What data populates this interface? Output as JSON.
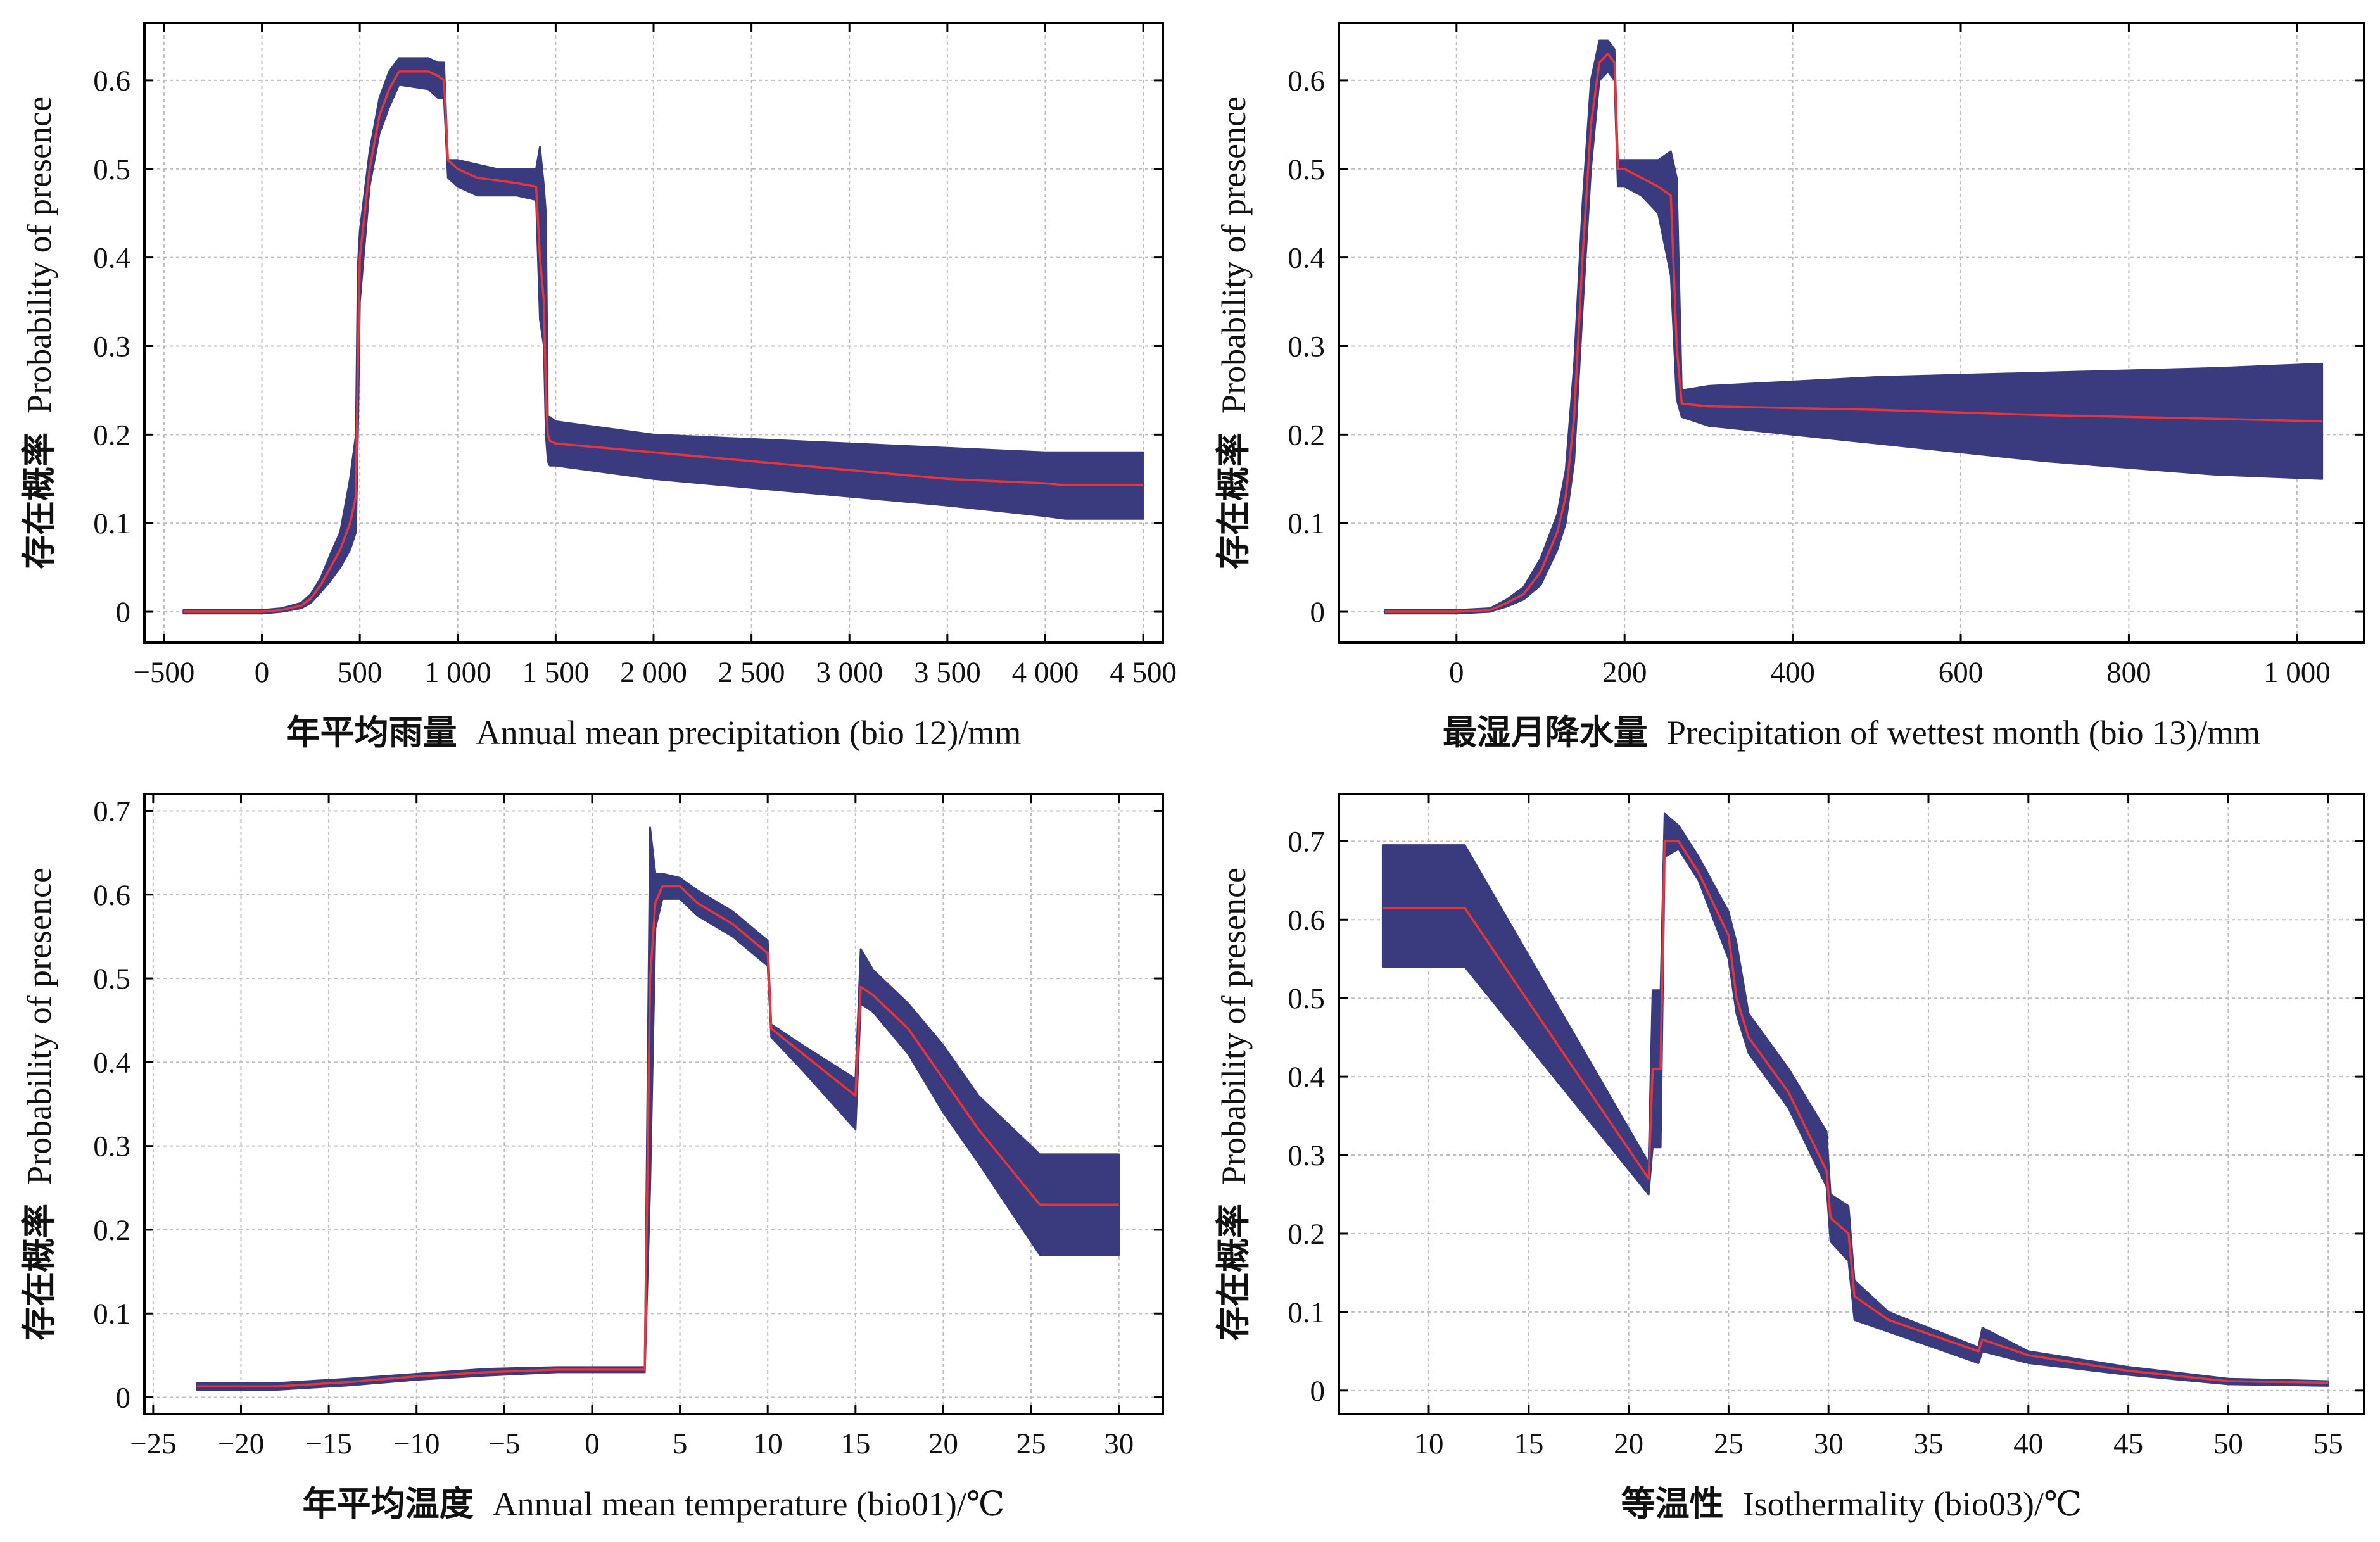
{
  "colors": {
    "band": "#3a3a7e",
    "mean_line": "#e8353a",
    "grid": "#bdbdbd",
    "axes": "#000000"
  },
  "chart_data": [
    {
      "type": "area",
      "xlabel_cn": "年平均雨量",
      "xlabel_en": "Annual mean precipitation (bio 12)/mm",
      "ylabel_cn": "存在概率",
      "ylabel_en": "Probability of presence",
      "xlim": [
        -600,
        4600
      ],
      "ylim": [
        -0.035,
        0.665
      ],
      "xticks": [
        -500,
        0,
        500,
        1000,
        1500,
        2000,
        2500,
        3000,
        3500,
        4000,
        4500
      ],
      "xtick_labels": [
        "−500",
        "0",
        "500",
        "1 000",
        "1 500",
        "2 000",
        "2 500",
        "3 000",
        "3 500",
        "4 000",
        "4 500"
      ],
      "yticks": [
        0,
        0.1,
        0.2,
        0.3,
        0.4,
        0.5,
        0.6
      ],
      "ytick_labels": [
        "0",
        "0.1",
        "0.2",
        "0.3",
        "0.4",
        "0.5",
        "0.6"
      ],
      "grid": true,
      "series": [
        {
          "role": "mean",
          "x": [
            -400,
            0,
            100,
            200,
            250,
            300,
            350,
            400,
            450,
            480,
            490,
            500,
            550,
            600,
            650,
            700,
            850,
            900,
            930,
            950,
            1000,
            1100,
            1200,
            1300,
            1400,
            1420,
            1440,
            1450,
            1460,
            1470,
            1500,
            2000,
            2500,
            3000,
            3500,
            4000,
            4100,
            4500
          ],
          "y": [
            0,
            0,
            0.002,
            0.007,
            0.015,
            0.03,
            0.05,
            0.07,
            0.1,
            0.13,
            0.28,
            0.4,
            0.5,
            0.56,
            0.59,
            0.61,
            0.61,
            0.605,
            0.6,
            0.51,
            0.5,
            0.49,
            0.487,
            0.484,
            0.48,
            0.4,
            0.35,
            0.25,
            0.2,
            0.193,
            0.19,
            0.18,
            0.17,
            0.16,
            0.15,
            0.145,
            0.143,
            0.143
          ]
        },
        {
          "role": "upper",
          "x": [
            -400,
            0,
            100,
            200,
            250,
            300,
            350,
            400,
            450,
            480,
            490,
            500,
            550,
            600,
            650,
            700,
            850,
            900,
            930,
            950,
            1000,
            1100,
            1200,
            1300,
            1400,
            1420,
            1440,
            1450,
            1460,
            1470,
            1500,
            2000,
            2500,
            3000,
            3500,
            4000,
            4100,
            4500
          ],
          "y": [
            0.002,
            0.002,
            0.004,
            0.01,
            0.02,
            0.038,
            0.065,
            0.09,
            0.15,
            0.2,
            0.39,
            0.43,
            0.52,
            0.58,
            0.61,
            0.625,
            0.625,
            0.62,
            0.62,
            0.51,
            0.51,
            0.505,
            0.5,
            0.5,
            0.5,
            0.525,
            0.48,
            0.45,
            0.22,
            0.22,
            0.215,
            0.2,
            0.195,
            0.19,
            0.185,
            0.18,
            0.18,
            0.18
          ]
        },
        {
          "role": "lower",
          "x": [
            -400,
            0,
            100,
            200,
            250,
            300,
            350,
            400,
            450,
            480,
            490,
            500,
            550,
            600,
            650,
            700,
            850,
            900,
            930,
            950,
            1000,
            1100,
            1200,
            1300,
            1400,
            1420,
            1440,
            1450,
            1460,
            1470,
            1500,
            2000,
            2500,
            3000,
            3500,
            4000,
            4100,
            4500
          ],
          "y": [
            -0.002,
            -0.002,
            0,
            0.004,
            0.01,
            0.022,
            0.035,
            0.05,
            0.07,
            0.09,
            0.2,
            0.35,
            0.48,
            0.54,
            0.57,
            0.595,
            0.59,
            0.58,
            0.58,
            0.49,
            0.48,
            0.47,
            0.47,
            0.47,
            0.465,
            0.33,
            0.3,
            0.2,
            0.17,
            0.165,
            0.165,
            0.15,
            0.14,
            0.13,
            0.12,
            0.108,
            0.105,
            0.105
          ]
        }
      ]
    },
    {
      "type": "area",
      "xlabel_cn": "最湿月降水量",
      "xlabel_en": "Precipitation of wettest month (bio 13)/mm",
      "ylabel_cn": "存在概率",
      "ylabel_en": "Probability of presence",
      "xlim": [
        -140,
        1080
      ],
      "ylim": [
        -0.035,
        0.665
      ],
      "xticks": [
        0,
        200,
        400,
        600,
        800,
        1000
      ],
      "xtick_labels": [
        "0",
        "200",
        "400",
        "600",
        "800",
        "1 000"
      ],
      "yticks": [
        0,
        0.1,
        0.2,
        0.3,
        0.4,
        0.5,
        0.6
      ],
      "ytick_labels": [
        "0",
        "0.1",
        "0.2",
        "0.3",
        "0.4",
        "0.5",
        "0.6"
      ],
      "grid": true,
      "series": [
        {
          "role": "mean",
          "x": [
            -85,
            0,
            40,
            60,
            80,
            100,
            120,
            130,
            140,
            150,
            160,
            170,
            180,
            188,
            192,
            200,
            220,
            240,
            255,
            262,
            268,
            300,
            500,
            700,
            900,
            1030
          ],
          "y": [
            0,
            0,
            0.002,
            0.01,
            0.02,
            0.045,
            0.09,
            0.13,
            0.22,
            0.4,
            0.55,
            0.62,
            0.63,
            0.62,
            0.5,
            0.5,
            0.49,
            0.48,
            0.47,
            0.3,
            0.235,
            0.232,
            0.228,
            0.222,
            0.218,
            0.215
          ]
        },
        {
          "role": "upper",
          "x": [
            -85,
            0,
            40,
            60,
            80,
            100,
            120,
            130,
            140,
            150,
            160,
            170,
            180,
            188,
            192,
            200,
            220,
            240,
            255,
            262,
            268,
            300,
            500,
            700,
            900,
            1030
          ],
          "y": [
            0.002,
            0.002,
            0.004,
            0.014,
            0.028,
            0.06,
            0.11,
            0.16,
            0.28,
            0.46,
            0.6,
            0.645,
            0.645,
            0.635,
            0.51,
            0.51,
            0.51,
            0.51,
            0.52,
            0.49,
            0.25,
            0.255,
            0.265,
            0.27,
            0.275,
            0.28
          ]
        },
        {
          "role": "lower",
          "x": [
            -85,
            0,
            40,
            60,
            80,
            100,
            120,
            130,
            140,
            150,
            160,
            170,
            180,
            188,
            192,
            200,
            220,
            240,
            255,
            262,
            268,
            300,
            500,
            700,
            900,
            1030
          ],
          "y": [
            -0.002,
            -0.002,
            0,
            0.006,
            0.014,
            0.03,
            0.07,
            0.1,
            0.17,
            0.34,
            0.5,
            0.6,
            0.61,
            0.6,
            0.48,
            0.48,
            0.47,
            0.45,
            0.38,
            0.24,
            0.22,
            0.21,
            0.19,
            0.17,
            0.155,
            0.15
          ]
        }
      ]
    },
    {
      "type": "area",
      "xlabel_cn": "年平均温度",
      "xlabel_en": "Annual mean temperature (bio01)/℃",
      "ylabel_cn": "存在概率",
      "ylabel_en": "Probability of presence",
      "xlim": [
        -25.5,
        32.5
      ],
      "ylim": [
        -0.02,
        0.72
      ],
      "xticks": [
        -25,
        -20,
        -15,
        -10,
        -5,
        0,
        5,
        10,
        15,
        20,
        25,
        30
      ],
      "xtick_labels": [
        "−25",
        "−20",
        "−15",
        "−10",
        "−5",
        "0",
        "5",
        "10",
        "15",
        "20",
        "25",
        "30"
      ],
      "yticks": [
        0,
        0.1,
        0.2,
        0.3,
        0.4,
        0.5,
        0.6,
        0.7
      ],
      "ytick_labels": [
        "0",
        "0.1",
        "0.2",
        "0.3",
        "0.4",
        "0.5",
        "0.6",
        "0.7"
      ],
      "grid": true,
      "series": [
        {
          "role": "mean",
          "x": [
            -22.5,
            -18,
            -14,
            -10,
            -6,
            -2,
            0,
            3,
            3.3,
            3.6,
            4,
            5,
            6,
            8,
            10,
            10.2,
            12,
            15,
            15.3,
            16,
            18,
            20,
            22,
            25.5,
            30
          ],
          "y": [
            0.013,
            0.013,
            0.018,
            0.025,
            0.03,
            0.033,
            0.033,
            0.033,
            0.5,
            0.59,
            0.61,
            0.61,
            0.59,
            0.565,
            0.53,
            0.44,
            0.41,
            0.36,
            0.49,
            0.48,
            0.44,
            0.38,
            0.32,
            0.23,
            0.23
          ]
        },
        {
          "role": "upper",
          "x": [
            -22.5,
            -18,
            -14,
            -10,
            -6,
            -2,
            0,
            3,
            3.3,
            3.6,
            4,
            5,
            6,
            8,
            10,
            10.2,
            12,
            15,
            15.3,
            16,
            18,
            20,
            22,
            25.5,
            30
          ],
          "y": [
            0.017,
            0.017,
            0.022,
            0.028,
            0.034,
            0.036,
            0.036,
            0.036,
            0.68,
            0.625,
            0.625,
            0.62,
            0.605,
            0.58,
            0.545,
            0.445,
            0.42,
            0.38,
            0.535,
            0.51,
            0.47,
            0.42,
            0.36,
            0.29,
            0.29
          ]
        },
        {
          "role": "lower",
          "x": [
            -22.5,
            -18,
            -14,
            -10,
            -6,
            -2,
            0,
            3,
            3.3,
            3.6,
            4,
            5,
            6,
            8,
            10,
            10.2,
            12,
            15,
            15.3,
            16,
            18,
            20,
            22,
            25.5,
            30
          ],
          "y": [
            0.009,
            0.009,
            0.014,
            0.021,
            0.026,
            0.03,
            0.03,
            0.03,
            0.25,
            0.56,
            0.595,
            0.595,
            0.575,
            0.55,
            0.515,
            0.43,
            0.39,
            0.32,
            0.47,
            0.46,
            0.41,
            0.34,
            0.28,
            0.17,
            0.17
          ]
        }
      ]
    },
    {
      "type": "area",
      "xlabel_cn": "等温性",
      "xlabel_en": "Isothermality (bio03)/℃",
      "ylabel_cn": "存在概率",
      "ylabel_en": "Probability of presence",
      "xlim": [
        5.5,
        56.8
      ],
      "ylim": [
        -0.03,
        0.76
      ],
      "xticks": [
        10,
        15,
        20,
        25,
        30,
        35,
        40,
        45,
        50,
        55
      ],
      "xtick_labels": [
        "10",
        "15",
        "20",
        "25",
        "30",
        "35",
        "40",
        "45",
        "50",
        "55"
      ],
      "yticks": [
        0,
        0.1,
        0.2,
        0.3,
        0.4,
        0.5,
        0.6,
        0.7
      ],
      "ytick_labels": [
        "0",
        "0.1",
        "0.2",
        "0.3",
        "0.4",
        "0.5",
        "0.6",
        "0.7"
      ],
      "grid": true,
      "series": [
        {
          "role": "mean",
          "x": [
            7.7,
            11.8,
            21,
            21.2,
            21.6,
            21.8,
            22.5,
            23.5,
            25,
            25.4,
            26,
            28,
            29.9,
            30.1,
            31,
            31.3,
            33,
            37.5,
            37.7,
            40,
            45,
            50,
            55
          ],
          "y": [
            0.615,
            0.615,
            0.27,
            0.41,
            0.41,
            0.7,
            0.7,
            0.66,
            0.58,
            0.5,
            0.45,
            0.38,
            0.28,
            0.22,
            0.2,
            0.12,
            0.09,
            0.05,
            0.065,
            0.045,
            0.025,
            0.012,
            0.01
          ]
        },
        {
          "role": "upper",
          "x": [
            7.7,
            11.8,
            21,
            21.2,
            21.6,
            21.8,
            22.5,
            23.5,
            25,
            25.4,
            26,
            28,
            29.9,
            30.1,
            31,
            31.3,
            33,
            37.5,
            37.7,
            40,
            45,
            50,
            55
          ],
          "y": [
            0.695,
            0.695,
            0.29,
            0.51,
            0.51,
            0.735,
            0.72,
            0.68,
            0.61,
            0.57,
            0.48,
            0.41,
            0.33,
            0.25,
            0.235,
            0.14,
            0.1,
            0.055,
            0.08,
            0.05,
            0.03,
            0.015,
            0.012
          ]
        },
        {
          "role": "lower",
          "x": [
            7.7,
            11.8,
            21,
            21.2,
            21.6,
            21.8,
            22.5,
            23.5,
            25,
            25.4,
            26,
            28,
            29.9,
            30.1,
            31,
            31.3,
            33,
            37.5,
            37.7,
            40,
            45,
            50,
            55
          ],
          "y": [
            0.54,
            0.54,
            0.25,
            0.31,
            0.31,
            0.68,
            0.69,
            0.65,
            0.55,
            0.48,
            0.43,
            0.36,
            0.26,
            0.19,
            0.165,
            0.09,
            0.075,
            0.035,
            0.05,
            0.035,
            0.02,
            0.008,
            0.006
          ]
        }
      ]
    }
  ]
}
